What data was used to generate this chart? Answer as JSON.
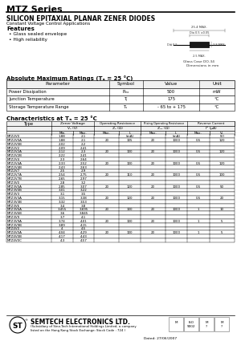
{
  "title": "MTZ Series",
  "subtitle": "SILICON EPITAXIAL PLANAR ZENER DIODES",
  "subtitle2": "Constant Voltage Control Applications",
  "features_title": "Features",
  "features": [
    "Glass sealed envelope",
    "High reliability"
  ],
  "abs_max_title": "Absolute Maximum Ratings (Tₐ = 25 °C)",
  "abs_max_headers": [
    "Parameter",
    "Symbol",
    "Value",
    "Unit"
  ],
  "abs_max_rows": [
    [
      "Power Dissipation",
      "Pₘₒ",
      "500",
      "mW"
    ],
    [
      "Junction Temperature",
      "Tⱼ",
      "175",
      "°C"
    ],
    [
      "Storage Temperature Range",
      "Tₛ",
      "- 65 to + 175",
      "°C"
    ]
  ],
  "char_title": "Characteristics at Tₐ = 25 °C",
  "char_rows": [
    [
      "MTZ2V0",
      "1.88",
      "2.1",
      "",
      "",
      "",
      "",
      "",
      "",
      ""
    ],
    [
      "MTZ2V0A",
      "1.88",
      "2.1",
      "20",
      "105",
      "20",
      "1000",
      "0.5",
      "120",
      "0.5"
    ],
    [
      "MTZ2V0B",
      "2.02",
      "2.2",
      "",
      "",
      "",
      "",
      "",
      "",
      ""
    ],
    [
      "MTZ2V2",
      "2.09",
      "2.41",
      "",
      "",
      "",
      "",
      "",
      "",
      ""
    ],
    [
      "MTZ2V2A",
      "2.12",
      "2.3",
      "20",
      "100",
      "20",
      "1000",
      "0.5",
      "120",
      "0.7"
    ],
    [
      "MTZ2V2B",
      "2.22",
      "2.41",
      "",
      "",
      "",
      "",
      "",
      "",
      ""
    ],
    [
      "MTZ2V4",
      "2.3",
      "2.64",
      "",
      "",
      "",
      "",
      "",
      "",
      ""
    ],
    [
      "MTZ2V4A",
      "2.33",
      "2.52",
      "20",
      "100",
      "20",
      "1000",
      "0.5",
      "120",
      "1"
    ],
    [
      "MTZ2V4B",
      "2.43",
      "2.63",
      "",
      "",
      "",
      "",
      "",
      "",
      ""
    ],
    [
      "MTZ2V7",
      "2.5",
      "2.9",
      "",
      "",
      "",
      "",
      "",
      "",
      ""
    ],
    [
      "MTZ2V7A",
      "2.54",
      "2.75",
      "20",
      "110",
      "20",
      "1000",
      "0.5",
      "100",
      "1"
    ],
    [
      "MTZ2V7B",
      "2.65",
      "2.97",
      "",
      "",
      "",
      "",
      "",
      "",
      ""
    ],
    [
      "MTZ3V0",
      "2.8",
      "3.2",
      "",
      "",
      "",
      "",
      "",
      "",
      ""
    ],
    [
      "MTZ3V0A",
      "2.85",
      "3.07",
      "20",
      "120",
      "20",
      "1000",
      "0.5",
      "50",
      "1"
    ],
    [
      "MTZ3V0B",
      "3.01",
      "3.22",
      "",
      "",
      "",
      "",
      "",
      "",
      ""
    ],
    [
      "MTZ3V3",
      "3.1",
      "3.5",
      "",
      "",
      "",
      "",
      "",
      "",
      ""
    ],
    [
      "MTZ3V3A",
      "3.15",
      "3.38",
      "20",
      "120",
      "20",
      "1000",
      "0.5",
      "20",
      "1"
    ],
    [
      "MTZ3V3B",
      "3.32",
      "3.53",
      "",
      "",
      "",
      "",
      "",
      "",
      ""
    ],
    [
      "MTZ3V6",
      "3.4",
      "3.8",
      "",
      "",
      "",
      "",
      "",
      "",
      ""
    ],
    [
      "MTZ3V6A",
      "3.455",
      "3.695",
      "20",
      "100",
      "20",
      "1000",
      "1",
      "10",
      "1"
    ],
    [
      "MTZ3V6B",
      "3.6",
      "3.845",
      "",
      "",
      "",
      "",
      "",
      "",
      ""
    ],
    [
      "MTZ3V9",
      "3.7",
      "4.1",
      "",
      "",
      "",
      "",
      "",
      "",
      ""
    ],
    [
      "MTZ3V9A",
      "3.74",
      "4.01",
      "20",
      "100",
      "20",
      "1000",
      "1",
      "5",
      "1"
    ],
    [
      "MTZ3V9B",
      "3.89",
      "4.15",
      "",
      "",
      "",
      "",
      "",
      "",
      ""
    ],
    [
      "MTZ4V0",
      "4",
      "4.5",
      "",
      "",
      "",
      "",
      "",
      "",
      ""
    ],
    [
      "MTZ4V0A",
      "4.04",
      "4.29",
      "20",
      "100",
      "20",
      "1000",
      "1",
      "5",
      "1"
    ],
    [
      "MTZ4V0B",
      "4.17",
      "4.43",
      "",
      "",
      "",
      "",
      "",
      "",
      ""
    ],
    [
      "MTZ4V0C",
      "4.3",
      "4.57",
      "",
      "",
      "",
      "",
      "",
      "",
      ""
    ]
  ],
  "footer_company": "SEMTECH ELECTRONICS LTD.",
  "footer_sub": "(Subsidiary of Sino-Tech International Holdings Limited, a company",
  "footer_sub2": "listed on the Hong Kong Stock Exchange: Stock Code : 724 )",
  "footer_date": "Dated: 27/06/2007",
  "bg_color": "#ffffff"
}
